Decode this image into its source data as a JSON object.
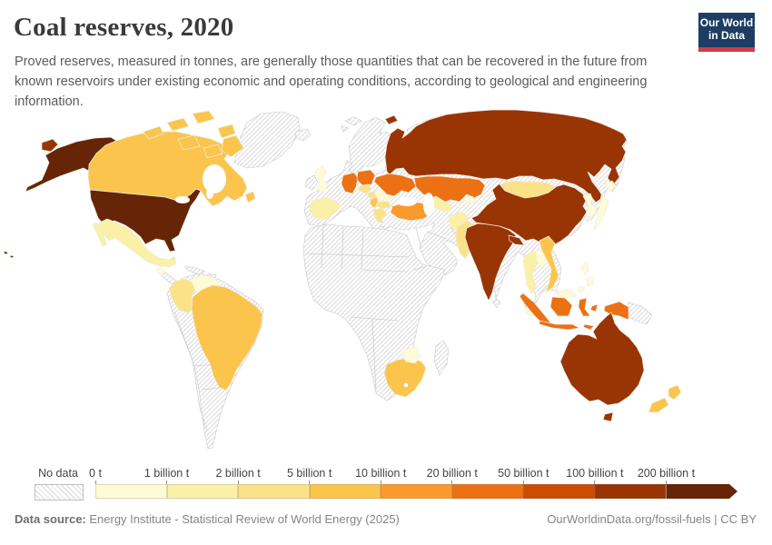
{
  "header": {
    "title": "Coal reserves, 2020",
    "subtitle": "Proved reserves, measured in tonnes, are generally those quantities that can be recovered in the future from known reservoirs under existing economic and operating conditions, according to geological and engineering information.",
    "logo": {
      "line1": "Our World",
      "line2": "in Data",
      "bg_color": "#1d3d63",
      "accent_color": "#d13c45"
    }
  },
  "legend": {
    "no_data_label": "No data",
    "bins": [
      {
        "label": "0 t",
        "color": "#fffbd6"
      },
      {
        "label": "1 billion t",
        "color": "#faf0a8"
      },
      {
        "label": "2 billion t",
        "color": "#fbe289"
      },
      {
        "label": "5 billion t",
        "color": "#fbc54d"
      },
      {
        "label": "10 billion t",
        "color": "#fb9a2c"
      },
      {
        "label": "20 billion t",
        "color": "#ec7014"
      },
      {
        "label": "50 billion t",
        "color": "#cc4c02"
      },
      {
        "label": "100 billion t",
        "color": "#993404"
      },
      {
        "label": "200 billion t",
        "color": "#662506"
      }
    ],
    "no_data_pattern_color": "#d9d9d9"
  },
  "map": {
    "ocean_color": "#ffffff",
    "border_color": "#c9c9c9",
    "fills": {
      "usa": 8,
      "alaska": 8,
      "hawaii": 8,
      "russia": 7,
      "chukotka-west": 7,
      "novaya-zemlya": 7,
      "china": 7,
      "india": 7,
      "india-ne": 7,
      "australia": 7,
      "tasmania": 7,
      "germany": 5,
      "poland": 5,
      "ukraine": 5,
      "kazakhstan": 5,
      "indonesia-sumatra": 5,
      "indonesia-borneo": 5,
      "indonesia-sulawesi": 5,
      "indonesia-java": 5,
      "indonesia-lesser": 5,
      "indonesia-moluccas": 5,
      "indonesia-papua": 5,
      "turkey": 4,
      "canada": 3,
      "arctic-1": 3,
      "arctic-2": 3,
      "arctic-3": 3,
      "arctic-4": 3,
      "arctic-5": 3,
      "arctic-6": 3,
      "baffin": 3,
      "newfoundland": 3,
      "brazil": 3,
      "south-africa": 3,
      "serbia": 3,
      "new-zealand-north": 3,
      "new-zealand-south": 3,
      "vietnam": 3,
      "colombia": 2,
      "czechia": 2,
      "hungary": 2,
      "bulgaria": 2,
      "greece": 2,
      "pakistan": 2,
      "mongolia": 2,
      "mexico": 1,
      "baja": 1,
      "spain": 1,
      "uzbekistan": 1,
      "thailand": 1,
      "thai-peninsula": 1,
      "afghanistan": 1,
      "venezuela": 0,
      "united-kingdom": 0,
      "romania": 0,
      "zimbabwe": 0,
      "japan-hokkaido": 0,
      "japan-honshu": 0,
      "north-korea": 0,
      "south-korea": 0,
      "laos": 0,
      "malaysia-peninsula": 0,
      "malaysia-borneo": 0,
      "philippines-1": 0,
      "philippines-2": 0,
      "philippines-3": 0,
      "kyrgyzstan": 0,
      "guatemala": 0
    }
  },
  "footer": {
    "source_label": "Data source:",
    "source_text": " Energy Institute - Statistical Review of World Energy (2025)",
    "link_text": "OurWorldinData.org/fossil-fuels | CC BY"
  },
  "chart_data": {
    "type": "heatmap",
    "subtype": "choropleth-world-map",
    "title": "Coal reserves, 2020",
    "unit": "tonnes",
    "legend_position": "bottom",
    "legend_bins": [
      "0 t",
      "1 billion t",
      "2 billion t",
      "5 billion t",
      "10 billion t",
      "20 billion t",
      "50 billion t",
      "100 billion t",
      "200 billion t"
    ],
    "countries_by_bin": {
      "200+ billion t": [
        "United States"
      ],
      "100-200 billion t": [
        "Russia",
        "China",
        "India",
        "Australia"
      ],
      "20-50 billion t": [
        "Germany",
        "Poland",
        "Ukraine",
        "Kazakhstan",
        "Indonesia"
      ],
      "10-20 billion t": [
        "Turkey"
      ],
      "5-10 billion t": [
        "Canada",
        "Brazil",
        "South Africa",
        "Serbia",
        "New Zealand",
        "Vietnam"
      ],
      "2-5 billion t": [
        "Colombia",
        "Czechia",
        "Hungary",
        "Bulgaria",
        "Greece",
        "Pakistan",
        "Mongolia"
      ],
      "1-2 billion t": [
        "Mexico",
        "Spain",
        "Uzbekistan",
        "Thailand",
        "Afghanistan"
      ],
      "0-1 billion t": [
        "Venezuela",
        "United Kingdom",
        "Romania",
        "Zimbabwe",
        "Japan",
        "South Korea",
        "North Korea",
        "Laos",
        "Malaysia",
        "Philippines",
        "Kyrgyzstan",
        "Guatemala"
      ],
      "No data": [
        "Most of Africa",
        "Middle East",
        "Argentina",
        "Chile",
        "Peru",
        "Bolivia",
        "France",
        "Italy",
        "Scandinavia",
        "Greenland",
        "Iran",
        "Saudi Arabia",
        "Myanmar",
        "Papua New Guinea",
        "Madagascar"
      ]
    }
  }
}
